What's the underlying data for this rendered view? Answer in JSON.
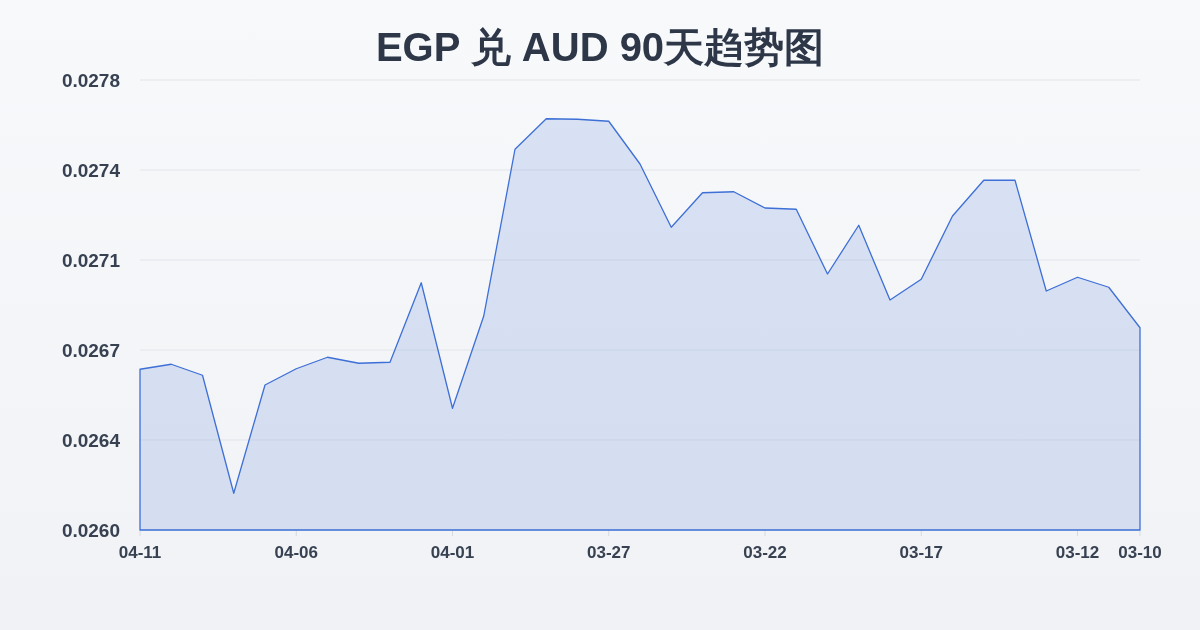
{
  "chart_data": {
    "type": "area",
    "title": "EGP 兑 AUD 90天趋势图",
    "categories": [
      "04-11",
      null,
      null,
      null,
      null,
      "04-06",
      null,
      null,
      null,
      null,
      "04-01",
      null,
      null,
      null,
      null,
      "03-27",
      null,
      null,
      null,
      null,
      "03-22",
      null,
      null,
      null,
      null,
      "03-17",
      null,
      null,
      null,
      null,
      "03-12",
      null,
      "03-10"
    ],
    "values": [
      0.026643,
      0.026663,
      0.026619,
      0.026147,
      0.02658,
      0.026645,
      0.026691,
      0.026667,
      0.026671,
      0.026989,
      0.026487,
      0.026856,
      0.027523,
      0.027645,
      0.027643,
      0.027635,
      0.027464,
      0.027211,
      0.027349,
      0.027353,
      0.027288,
      0.027283,
      0.027024,
      0.027219,
      0.02692,
      0.027003,
      0.027256,
      0.027399,
      0.027399,
      0.026956,
      0.027011,
      0.026971,
      0.026809
    ],
    "color": "#3d6fd6",
    "ylim": [
      0.026,
      0.0278
    ],
    "yticks": [
      {
        "value": 0.026,
        "label": "0.0260"
      },
      {
        "value": 0.02636,
        "label": "0.0264"
      },
      {
        "value": 0.02672,
        "label": "0.0267"
      },
      {
        "value": 0.02708,
        "label": "0.0271"
      },
      {
        "value": 0.02744,
        "label": "0.0274"
      },
      0.0278
    ],
    "grid": "y"
  }
}
